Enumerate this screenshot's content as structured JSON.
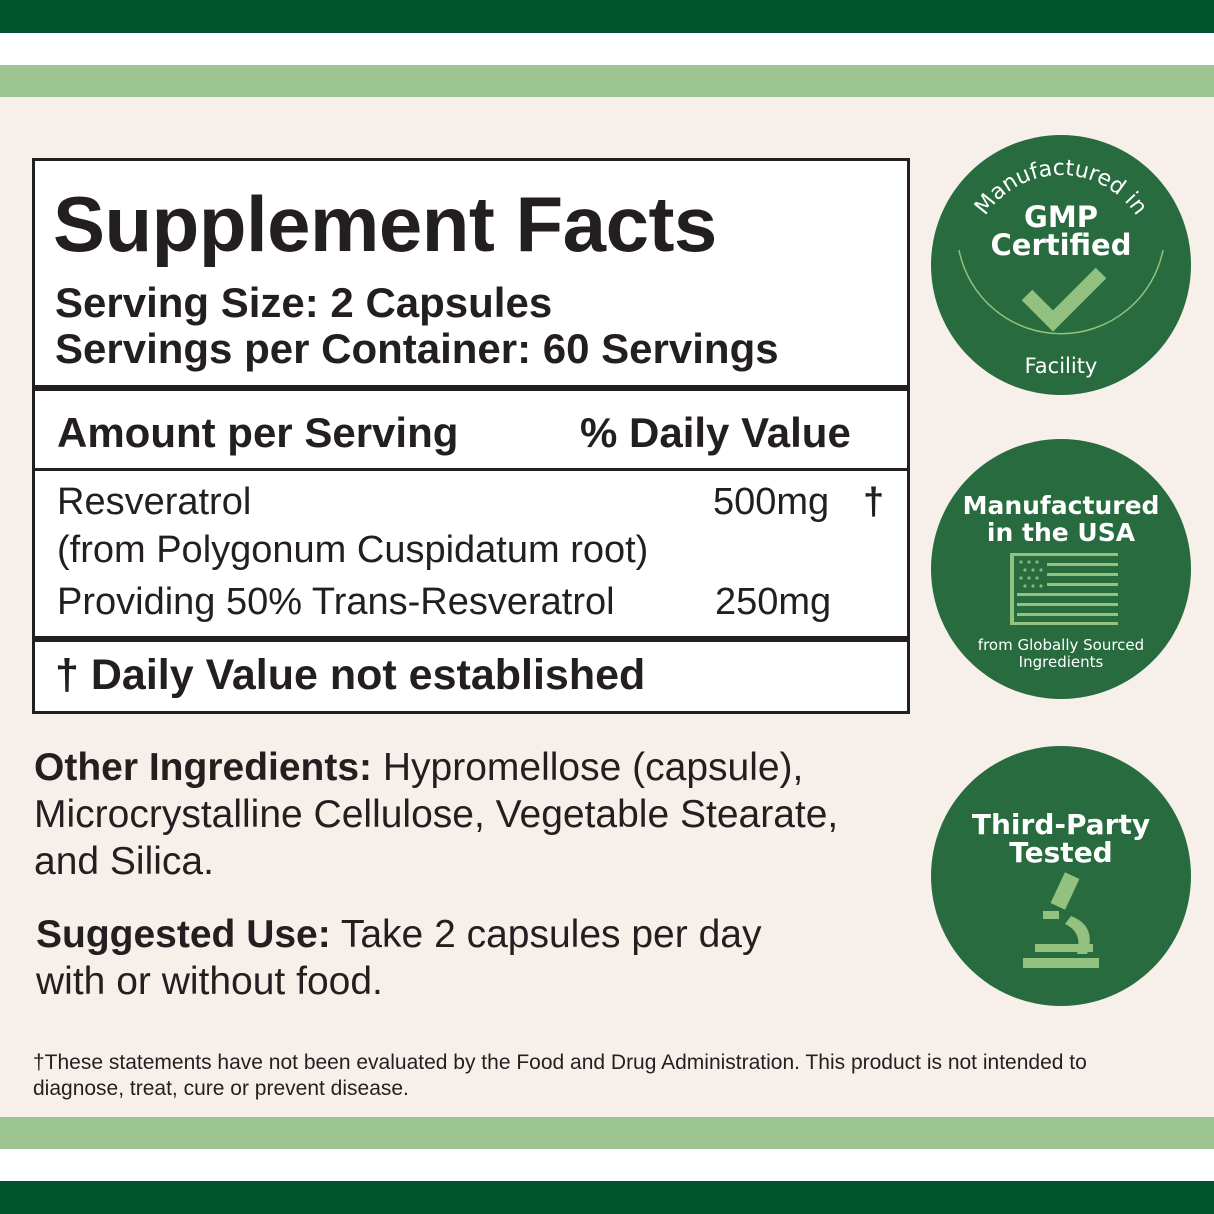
{
  "colors": {
    "dark_green": "#00552f",
    "light_green": "#9cc592",
    "badge_green": "#276b3f",
    "badge_accent": "#93c17f",
    "background": "#f7efea"
  },
  "facts": {
    "title": "Supplement Facts",
    "serving_size": "Serving Size: 2 Capsules",
    "servings_per_container": "Servings per Container: 60 Servings",
    "header_amount": "Amount per Serving",
    "header_dv": "% Daily Value",
    "rows": [
      {
        "name": "Resveratrol",
        "sub": "(from Polygonum Cuspidatum root)",
        "amount": "500mg",
        "dv": "†"
      },
      {
        "name": "Providing 50% Trans-Resveratrol",
        "amount": "250mg"
      }
    ],
    "footnote": "† Daily Value not established"
  },
  "other_ingredients": {
    "label": "Other Ingredients:",
    "text": " Hypromellose (capsule), Microcrystalline Cellulose, Vegetable Stearate, and Silica."
  },
  "suggested_use": {
    "label": "Suggested Use:",
    "text": " Take 2 capsules per day with or without food."
  },
  "disclaimer": "†These statements have not been evaluated by the Food and Drug Administration. This product is not intended to diagnose, treat, cure or prevent disease.",
  "badges": [
    {
      "top": "Manufactured in",
      "main1": "GMP",
      "main2": "Certified",
      "bottom": "Facility",
      "icon": "checkmark-icon"
    },
    {
      "main1": "Manufactured",
      "main2": "in the USA",
      "sub1": "from Globally Sourced",
      "sub2": "Ingredients",
      "icon": "us-flag-icon"
    },
    {
      "main1": "Third-Party",
      "main2": "Tested",
      "icon": "microscope-icon"
    }
  ]
}
